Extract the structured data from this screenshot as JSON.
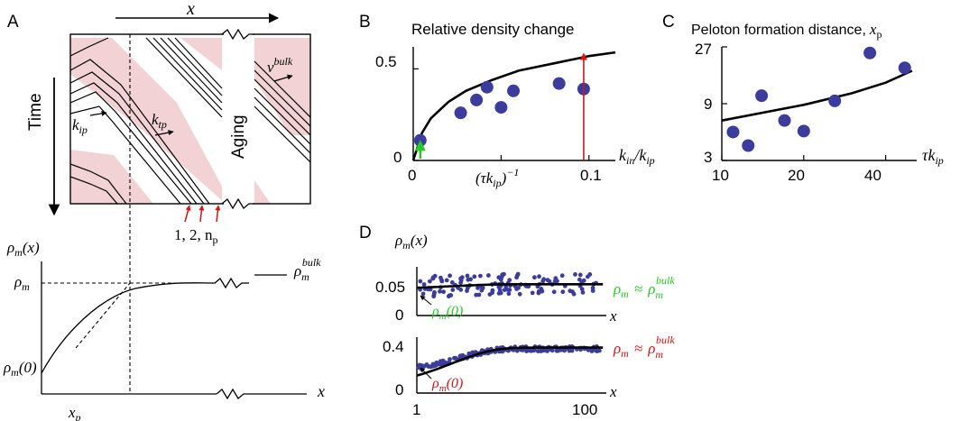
{
  "panels": {
    "A": {
      "letter": "A",
      "x_axis_top": "x",
      "time_label": "Time",
      "aging_label": "Aging",
      "k_ip": "k",
      "k_ip_sub": "ip",
      "k_tp": "k",
      "k_tp_sub": "tp",
      "v_bulk": "v",
      "v_bulk_sup": "bulk",
      "lane_labels": "1, 2, n",
      "lane_labels_sub": "p",
      "lower_ylabel": "ρ",
      "lower_ylabel_sub": "m",
      "lower_ylabel_arg": "(x)",
      "rho_m": "ρ",
      "rho_m_sub": "m",
      "rho_m0": "ρ",
      "rho_m0_sub": "m",
      "rho_m0_arg": "(0)",
      "rho_bulk": "ρ",
      "rho_bulk_sub": "m",
      "rho_bulk_sup": "bulk",
      "x_label": "x",
      "xp_label": "x",
      "xp_sub": "p"
    },
    "B": {
      "letter": "B",
      "title": "Relative density change",
      "xlabel_main": "k",
      "xlabel_sub1": "in",
      "xlabel_mid": "/k",
      "xlabel_sub2": "ip",
      "xlabel_inv": "(τk",
      "xlabel_inv_sub": "ip",
      "xlabel_inv_end": ")",
      "xlabel_inv_exp": "−1",
      "tick_y0": "0",
      "tick_y05": "0.5",
      "tick_x0": "0",
      "tick_x01": "0.1"
    },
    "C": {
      "letter": "C",
      "title": "Peloton formation distance,",
      "title_var": "x",
      "title_sub": "p",
      "xlabel": "τk",
      "xlabel_sub": "ip",
      "ticks_y": [
        "27",
        "9",
        "3"
      ],
      "ticks_x": [
        "10",
        "20",
        "40"
      ]
    },
    "D": {
      "letter": "D",
      "ylabel": "ρ",
      "ylabel_sub": "m",
      "ylabel_arg": "(x)",
      "top": {
        "tick_hi": "0.05",
        "tick_lo": "0",
        "annot": "ρ",
        "annot_sub": "m",
        "annot_arg": "(0)",
        "approx": "ρ",
        "approx_sub": "m",
        "approx_sym": "≈",
        "approx_rhs": "ρ",
        "approx_rhs_sub": "m",
        "approx_rhs_sup": "bulk",
        "x_label": "x"
      },
      "bottom": {
        "tick_hi": "0.4",
        "tick_lo": "0",
        "annot": "ρ",
        "annot_sub": "m",
        "annot_arg": "(0)",
        "approx": "ρ",
        "approx_sub": "m",
        "approx_sym": "≈",
        "approx_rhs": "ρ",
        "approx_rhs_sub": "m",
        "approx_rhs_sup": "bulk",
        "x_label": "x"
      },
      "ticks_x": [
        "1",
        "100"
      ]
    }
  },
  "colors": {
    "marker": "#3c3c9c",
    "pink": "#f2d2d4",
    "green": "#22cc22",
    "red": "#dd1111"
  },
  "chart_data": [
    {
      "panel": "B",
      "type": "scatter",
      "title": "Relative density change",
      "xlim": [
        0,
        0.115
      ],
      "ylim": [
        0,
        0.62
      ],
      "x_ticks": [
        0,
        0.1
      ],
      "y_ticks": [
        0,
        0.5
      ],
      "series": [
        {
          "x": [
            0.004,
            0.027,
            0.036,
            0.042,
            0.05,
            0.057,
            0.083,
            0.097
          ],
          "y": [
            0.11,
            0.26,
            0.33,
            0.4,
            0.29,
            0.38,
            0.42,
            0.39
          ]
        }
      ],
      "fit_curve": {
        "x": [
          0.0,
          0.005,
          0.01,
          0.02,
          0.03,
          0.045,
          0.06,
          0.08,
          0.1,
          0.115
        ],
        "y": [
          0.0,
          0.15,
          0.23,
          0.32,
          0.38,
          0.44,
          0.49,
          0.53,
          0.57,
          0.59
        ]
      },
      "arrows": [
        {
          "color": "green",
          "x": 0.004,
          "y_from": 0.0,
          "y_to": 0.1
        },
        {
          "color": "red",
          "x": 0.097,
          "y_from": 0.0,
          "y_to": 0.58
        }
      ]
    },
    {
      "panel": "C",
      "type": "scatter",
      "title": "Peloton formation distance, x_p",
      "x_scale": "log",
      "y_scale": "log",
      "xlim": [
        10,
        52
      ],
      "ylim": [
        3,
        27
      ],
      "x_ticks": [
        10,
        20,
        40
      ],
      "y_ticks": [
        3,
        9,
        27
      ],
      "series": [
        {
          "x": [
            11,
            12.5,
            14,
            17,
            20,
            26,
            35,
            47
          ],
          "y": [
            5.2,
            4.0,
            10.5,
            6.5,
            5.3,
            9.5,
            24,
            18
          ]
        }
      ],
      "fit_curve": {
        "x": [
          10,
          20,
          30,
          40,
          50
        ],
        "y": [
          6.5,
          8.8,
          11.0,
          13.5,
          17.0
        ]
      }
    },
    {
      "panel": "D-top",
      "type": "scatter",
      "x_scale": "log",
      "xlim": [
        1,
        120
      ],
      "ylim": [
        0,
        0.07
      ],
      "y_ticks": [
        0,
        0.05
      ],
      "x_ticks": [
        1,
        100
      ],
      "fit_level": 0.045,
      "fit_start": 0.04,
      "scatter_center": 0.045,
      "scatter_spread": 0.015
    },
    {
      "panel": "D-bottom",
      "type": "scatter",
      "x_scale": "log",
      "xlim": [
        1,
        120
      ],
      "ylim": [
        0,
        0.48
      ],
      "y_ticks": [
        0,
        0.4
      ],
      "x_ticks": [
        1,
        100
      ],
      "fit_level": 0.39,
      "fit_start": 0.15,
      "scatter_center": 0.38,
      "scatter_spread": 0.02
    }
  ]
}
